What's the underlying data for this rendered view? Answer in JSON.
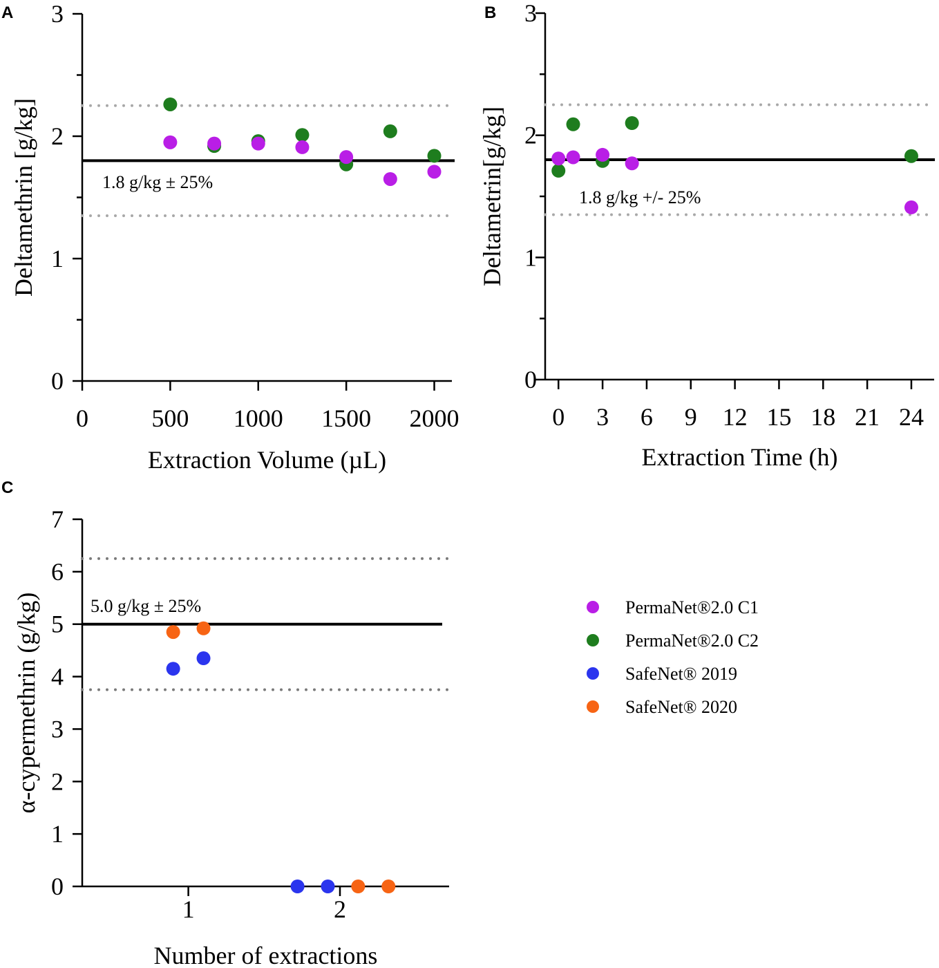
{
  "chart_data": [
    {
      "panel": "A",
      "type": "scatter",
      "xlabel": "Extraction Volume (µL)",
      "ylabel": "Deltamethrin [g/kg]",
      "xlim": [
        0,
        2100
      ],
      "ylim": [
        0,
        3
      ],
      "xticks": [
        0,
        500,
        1000,
        1500,
        2000
      ],
      "yticks": [
        0,
        1,
        2,
        3
      ],
      "reference": {
        "value": 1.8,
        "lower": 1.35,
        "upper": 2.25,
        "label": "1.8 g/kg ± 25%"
      },
      "series": [
        {
          "name": "PermaNet®2.0 C2",
          "color": "#1e7d1e",
          "x": [
            500,
            750,
            1000,
            1250,
            1500,
            1750,
            2000
          ],
          "y": [
            2.26,
            1.92,
            1.96,
            2.01,
            1.77,
            2.04,
            1.84
          ]
        },
        {
          "name": "PermaNet®2.0 C1",
          "color": "#b91ee6",
          "x": [
            500,
            750,
            1000,
            1250,
            1500,
            1750,
            2000
          ],
          "y": [
            1.95,
            1.94,
            1.94,
            1.91,
            1.83,
            1.65,
            1.71
          ]
        }
      ]
    },
    {
      "panel": "B",
      "type": "scatter",
      "xlabel": "Extraction Time (h)",
      "ylabel": "Deltametrin[g/kg]",
      "xlim": [
        -0.2,
        24.8
      ],
      "ylim": [
        0,
        3
      ],
      "xticks": [
        0,
        3,
        6,
        9,
        12,
        15,
        18,
        21,
        24
      ],
      "yticks": [
        0,
        1,
        2,
        3
      ],
      "reference": {
        "value": 1.8,
        "lower": 1.35,
        "upper": 2.25,
        "label": "1.8 g/kg +/- 25%"
      },
      "series": [
        {
          "name": "PermaNet®2.0 C2",
          "color": "#1e7d1e",
          "x": [
            0,
            1,
            3,
            5,
            24
          ],
          "y": [
            1.71,
            2.09,
            1.79,
            2.1,
            1.83
          ]
        },
        {
          "name": "PermaNet®2.0 C1",
          "color": "#b91ee6",
          "x": [
            0,
            1,
            3,
            5,
            24
          ],
          "y": [
            1.81,
            1.82,
            1.84,
            1.77,
            1.41
          ]
        }
      ]
    },
    {
      "panel": "C",
      "type": "scatter",
      "xlabel": "Number of extractions",
      "ylabel": "α-cypermethrin (g/kg)",
      "xlim": [
        0.3,
        2.72
      ],
      "ylim": [
        0,
        7
      ],
      "xticks": [
        1,
        2
      ],
      "yticks": [
        0,
        1,
        2,
        3,
        4,
        5,
        6,
        7
      ],
      "reference": {
        "value": 5.0,
        "lower": 3.75,
        "upper": 6.25,
        "label": "5.0 g/kg ± 25%"
      },
      "series": [
        {
          "name": "SafeNet® 2019",
          "color": "#2b35ee",
          "x": [
            0.9,
            1.1,
            1.72,
            1.92
          ],
          "y": [
            4.15,
            4.35,
            0,
            0
          ]
        },
        {
          "name": "SafeNet® 2020",
          "color": "#f76414",
          "x": [
            0.9,
            1.1,
            2.12,
            2.32
          ],
          "y": [
            4.85,
            4.92,
            0,
            0
          ]
        }
      ]
    }
  ],
  "panel_labels": [
    "A",
    "B",
    "C"
  ],
  "legend": [
    {
      "label": "PermaNet®2.0 C1",
      "color": "#b91ee6"
    },
    {
      "label": "PermaNet®2.0 C2",
      "color": "#1e7d1e"
    },
    {
      "label": "SafeNet® 2019",
      "color": "#2b35ee"
    },
    {
      "label": "SafeNet® 2020",
      "color": "#f76414"
    }
  ]
}
